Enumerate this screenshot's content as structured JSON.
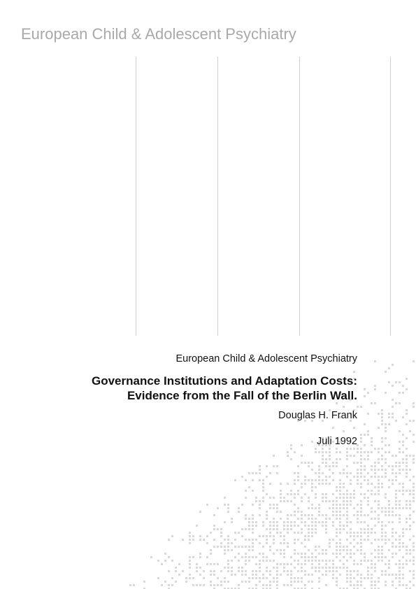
{
  "header": {
    "journal": "European Child & Adolescent Psychiatry"
  },
  "cover": {
    "journal": "European Child & Adolescent Psychiatry",
    "title_line1": "Governance Institutions and Adaptation Costs:",
    "title_line2": "Evidence from the Fall of the Berlin Wall.",
    "author": "Douglas H. Frank",
    "date": "Juli 1992"
  },
  "colors": {
    "header_text": "#a9a9a9",
    "rule": "#cfcfcf",
    "body_text": "#111111",
    "pattern": "#d9d9d9"
  }
}
